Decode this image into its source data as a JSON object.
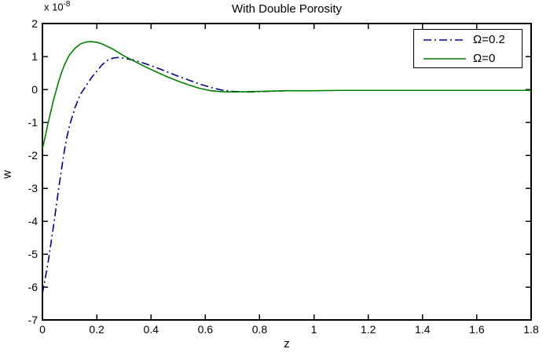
{
  "figure": {
    "background": "#ffffff",
    "axis_color": "#000000"
  },
  "chart_data": {
    "type": "line",
    "title": "With Double Porosity",
    "xlabel": "z",
    "ylabel": "w",
    "y_exponent_prefix": "x 10",
    "y_exponent_power": "-8",
    "xlim": [
      0,
      1.8
    ],
    "ylim": [
      -7,
      2
    ],
    "x_ticks": [
      "0",
      "0.2",
      "0.4",
      "0.6",
      "0.8",
      "1",
      "1.2",
      "1.4",
      "1.6",
      "1.8"
    ],
    "y_ticks": [
      "2",
      "1",
      "0",
      "-1",
      "-2",
      "-3",
      "-4",
      "-5",
      "-6",
      "-7"
    ],
    "grid": false,
    "legend_position": "top-right",
    "series": [
      {
        "name": "Ω=0.2",
        "color": "#00008b",
        "style": "dash-dot",
        "x": [
          0,
          0.01,
          0.02,
          0.03,
          0.04,
          0.05,
          0.06,
          0.07,
          0.08,
          0.09,
          0.1,
          0.12,
          0.14,
          0.16,
          0.18,
          0.2,
          0.22,
          0.24,
          0.26,
          0.28,
          0.3,
          0.34,
          0.38,
          0.42,
          0.46,
          0.5,
          0.54,
          0.58,
          0.62,
          0.66,
          0.7,
          0.75,
          0.8,
          0.85,
          0.9
        ],
        "y": [
          -6.2,
          -5.75,
          -5.3,
          -4.75,
          -4.2,
          -3.6,
          -3.0,
          -2.45,
          -1.9,
          -1.45,
          -1.1,
          -0.55,
          -0.15,
          0.1,
          0.35,
          0.55,
          0.75,
          0.88,
          0.95,
          0.97,
          0.95,
          0.88,
          0.78,
          0.66,
          0.53,
          0.4,
          0.28,
          0.16,
          0.06,
          -0.02,
          -0.06,
          -0.08,
          -0.07,
          -0.05,
          -0.04
        ]
      },
      {
        "name": "Ω=0",
        "color": "#008000",
        "style": "solid",
        "x": [
          0,
          0.01,
          0.02,
          0.03,
          0.04,
          0.05,
          0.06,
          0.07,
          0.08,
          0.09,
          0.1,
          0.12,
          0.14,
          0.16,
          0.18,
          0.2,
          0.22,
          0.26,
          0.3,
          0.34,
          0.38,
          0.42,
          0.46,
          0.5,
          0.54,
          0.58,
          0.62,
          0.66,
          0.7,
          0.75,
          0.8,
          0.9,
          1.0,
          1.1,
          1.2,
          1.3,
          1.4,
          1.5,
          1.6,
          1.7,
          1.8
        ],
        "y": [
          -1.8,
          -1.45,
          -1.05,
          -0.7,
          -0.35,
          -0.05,
          0.25,
          0.5,
          0.72,
          0.9,
          1.05,
          1.25,
          1.38,
          1.44,
          1.45,
          1.43,
          1.38,
          1.22,
          1.02,
          0.85,
          0.68,
          0.53,
          0.38,
          0.25,
          0.13,
          0.03,
          -0.04,
          -0.07,
          -0.08,
          -0.07,
          -0.06,
          -0.04,
          -0.04,
          -0.03,
          -0.03,
          -0.03,
          -0.03,
          -0.03,
          -0.03,
          -0.03,
          -0.03
        ]
      }
    ]
  }
}
